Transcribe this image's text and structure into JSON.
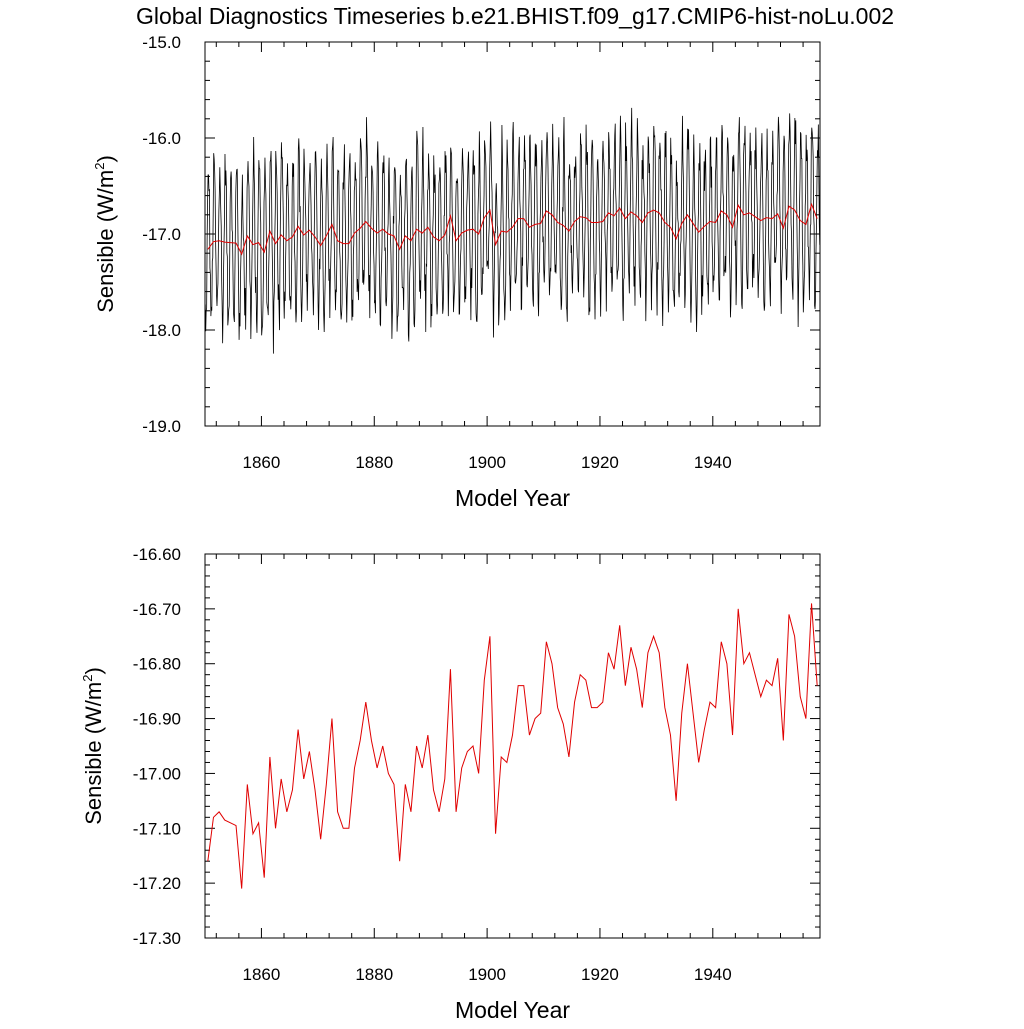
{
  "title": "Global Diagnostics Timeseries b.e21.BHIST.f09_g17.CMIP6-hist-noLu.002",
  "colors": {
    "monthly": "#000000",
    "annual": "#e00000",
    "axis": "#000000"
  },
  "chart_data": [
    {
      "type": "line",
      "xlabel": "Model Year",
      "ylabel": "Sensible (W/m",
      "ylabel_sup": "2",
      "ylabel_close": ")",
      "xlim": [
        1850,
        1959
      ],
      "ylim": [
        -19.0,
        -15.0
      ],
      "xticks": [
        1860,
        1880,
        1900,
        1920,
        1940
      ],
      "yticks": [
        -19.0,
        -18.0,
        -17.0,
        -16.0,
        -15.0
      ],
      "ytick_labels": [
        "-19.0",
        "-18.0",
        "-17.0",
        "-16.0",
        "-15.0"
      ],
      "series": [
        {
          "role": "monthly",
          "color": "#000000",
          "generated": "monthly_from_annual",
          "x_start": 1850,
          "amplitude": 0.8,
          "phase_peak_month": 7
        },
        {
          "role": "annual",
          "color": "#e00000",
          "source": "annual"
        }
      ]
    },
    {
      "type": "line",
      "xlabel": "Model Year",
      "ylabel": "Sensible (W/m",
      "ylabel_sup": "2",
      "ylabel_close": ")",
      "xlim": [
        1850,
        1959
      ],
      "ylim": [
        -17.3,
        -16.6
      ],
      "xticks": [
        1860,
        1880,
        1900,
        1920,
        1940
      ],
      "yticks": [
        -17.3,
        -17.2,
        -17.1,
        -17.0,
        -16.9,
        -16.8,
        -16.7,
        -16.6
      ],
      "ytick_labels": [
        "-17.30",
        "-17.20",
        "-17.10",
        "-17.00",
        "-16.90",
        "-16.80",
        "-16.70",
        "-16.60"
      ],
      "series": [
        {
          "role": "annual",
          "color": "#e00000",
          "source": "annual"
        }
      ]
    }
  ],
  "annual": {
    "x_start": 1850,
    "values": [
      -17.16,
      -17.08,
      -17.07,
      -17.085,
      -17.09,
      -17.095,
      -17.21,
      -17.02,
      -17.11,
      -17.09,
      -17.19,
      -16.97,
      -17.1,
      -17.01,
      -17.07,
      -17.03,
      -16.92,
      -17.01,
      -16.96,
      -17.03,
      -17.12,
      -17.02,
      -16.9,
      -17.07,
      -17.1,
      -17.1,
      -16.99,
      -16.94,
      -16.87,
      -16.94,
      -16.99,
      -16.95,
      -17.0,
      -17.02,
      -17.16,
      -17.02,
      -17.07,
      -16.95,
      -16.99,
      -16.93,
      -17.03,
      -17.07,
      -17.01,
      -16.81,
      -17.07,
      -16.99,
      -16.96,
      -16.95,
      -17.0,
      -16.83,
      -16.75,
      -17.11,
      -16.97,
      -16.98,
      -16.93,
      -16.84,
      -16.84,
      -16.93,
      -16.9,
      -16.89,
      -16.76,
      -16.8,
      -16.88,
      -16.91,
      -16.97,
      -16.87,
      -16.82,
      -16.83,
      -16.88,
      -16.88,
      -16.87,
      -16.78,
      -16.81,
      -16.73,
      -16.84,
      -16.77,
      -16.81,
      -16.88,
      -16.78,
      -16.75,
      -16.78,
      -16.88,
      -16.93,
      -17.05,
      -16.89,
      -16.8,
      -16.89,
      -16.98,
      -16.92,
      -16.87,
      -16.88,
      -16.76,
      -16.8,
      -16.93,
      -16.7,
      -16.8,
      -16.78,
      -16.82,
      -16.86,
      -16.83,
      -16.84,
      -16.79,
      -16.94,
      -16.71,
      -16.75,
      -16.86,
      -16.9,
      -16.69,
      -16.84
    ]
  }
}
